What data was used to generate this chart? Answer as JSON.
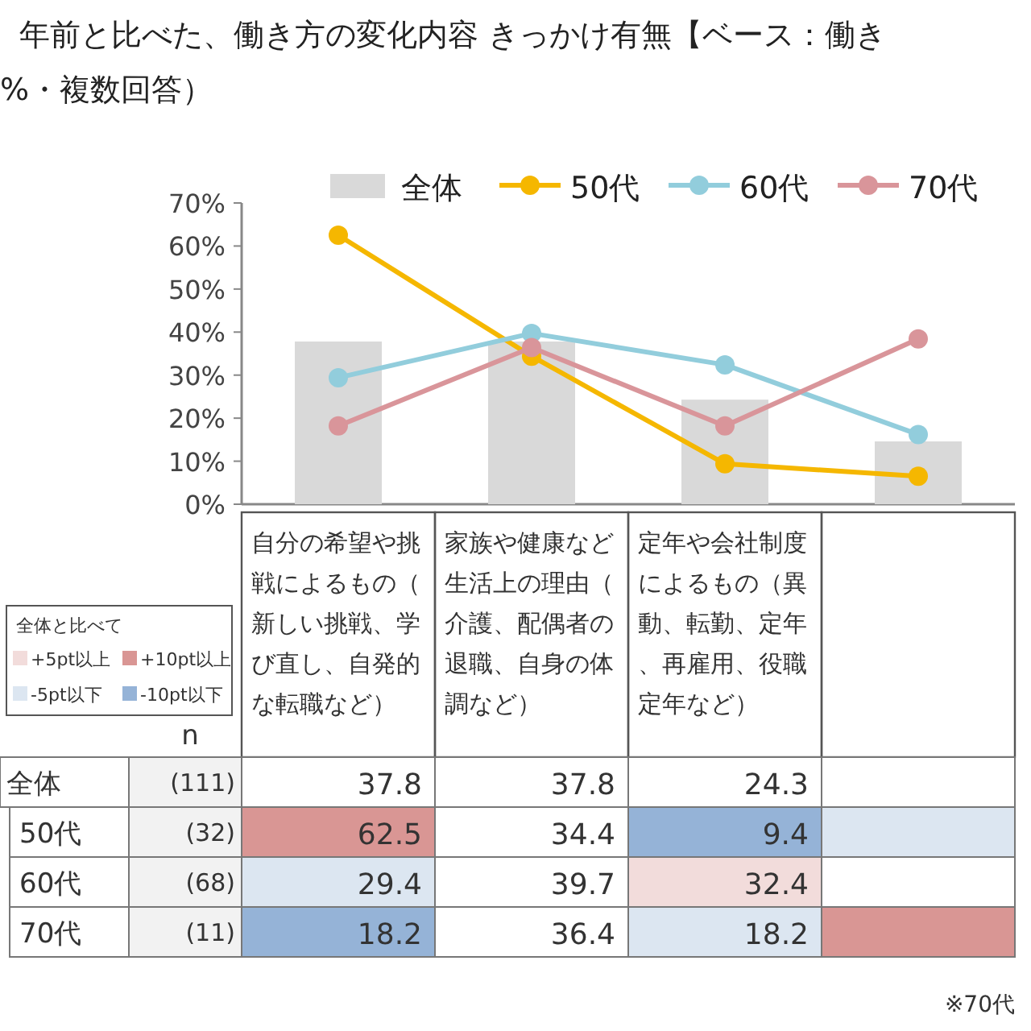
{
  "chart_data": {
    "type": "bar",
    "title": "年前と比べた、働き方の変化内容 きっかけ有無【ベース：働き",
    "subtitle": "%・複数回答）",
    "categories": [
      "自分の希望や挑戦によるもの（新しい挑戦、学び直し、自発的な転職など）",
      "家族や健康など生活上の理由（介護、配偶者の退職、自身の体調など）",
      "定年や会社制度によるもの（異動、転勤、定年、再雇用、役職定年など）",
      null
    ],
    "ylim": [
      0,
      70
    ],
    "yticks": [
      {
        "value": 0,
        "label": "0%"
      },
      {
        "value": 10,
        "label": "10%"
      },
      {
        "value": 20,
        "label": "20%"
      },
      {
        "value": 30,
        "label": "30%"
      },
      {
        "value": 40,
        "label": "40%"
      },
      {
        "value": 50,
        "label": "50%"
      },
      {
        "value": 60,
        "label": "60%"
      },
      {
        "value": 70,
        "label": "70%"
      }
    ],
    "legend": "top",
    "marker": "circle",
    "series": [
      {
        "name": "全体",
        "color": "#d9d9d9",
        "values": [
          37.8,
          37.8,
          24.3,
          14.6
        ],
        "value_labels": [
          "37.8",
          "37.8",
          "24.3",
          null
        ]
      },
      {
        "name": "50代",
        "type": "line",
        "color": "#f5b700",
        "colors": [
          "#d99694",
          null,
          "#95b3d7",
          "#dce6f1"
        ],
        "values": [
          62.5,
          34.4,
          9.4,
          6.5
        ],
        "value_labels": [
          "62.5",
          "34.4",
          "9.4",
          null
        ]
      },
      {
        "name": "60代",
        "type": "line",
        "color": "#92cddc",
        "colors": [
          "#dce6f1",
          null,
          "#f2dcdb",
          null
        ],
        "values": [
          29.4,
          39.7,
          32.4,
          16.2
        ],
        "value_labels": [
          "29.4",
          "39.7",
          "32.4",
          null
        ]
      },
      {
        "name": "70代",
        "type": "line",
        "color": "#d9959a",
        "colors": [
          "#95b3d7",
          null,
          "#dce6f1",
          "#d99694"
        ],
        "values": [
          18.2,
          36.4,
          18.2,
          38.4
        ],
        "value_labels": [
          "18.2",
          "36.4",
          "18.2",
          null
        ]
      }
    ],
    "annotations": [
      "n",
      "(111)",
      "(32)",
      "(68)",
      "(11)",
      "全体と比べて",
      "+5pt以上",
      "+10pt以上",
      "-5pt以下",
      "-10pt以下",
      "※70代"
    ]
  }
}
